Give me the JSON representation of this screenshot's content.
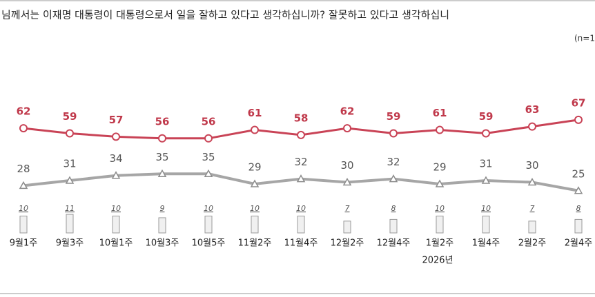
{
  "chart_data": {
    "type": "line",
    "title": "님께서는 이재명 대통령이 대통령으로서 일을 잘하고 있다고 생각하십니까? 잘못하고 있다고 생각하십니",
    "note": "(n=1",
    "categories": [
      "9월1주",
      "9월3주",
      "10월1주",
      "10월3주",
      "10월5주",
      "11월2주",
      "11월4주",
      "12월2주",
      "12월4주",
      "1월2주",
      "1월4주",
      "2월2주",
      "2월4주"
    ],
    "annotation": "2026년",
    "series": [
      {
        "color": "#c94356",
        "values": [
          62,
          59,
          57,
          56,
          56,
          61,
          58,
          62,
          59,
          61,
          59,
          63,
          67
        ]
      },
      {
        "color": "#a6a6a6",
        "values": [
          28,
          31,
          34,
          35,
          35,
          29,
          32,
          30,
          32,
          29,
          31,
          30,
          25
        ]
      },
      {
        "type": "bar",
        "color": "#f0f0f0",
        "values": [
          10,
          11,
          10,
          9,
          10,
          10,
          10,
          7,
          8,
          10,
          10,
          7,
          8
        ]
      }
    ]
  }
}
